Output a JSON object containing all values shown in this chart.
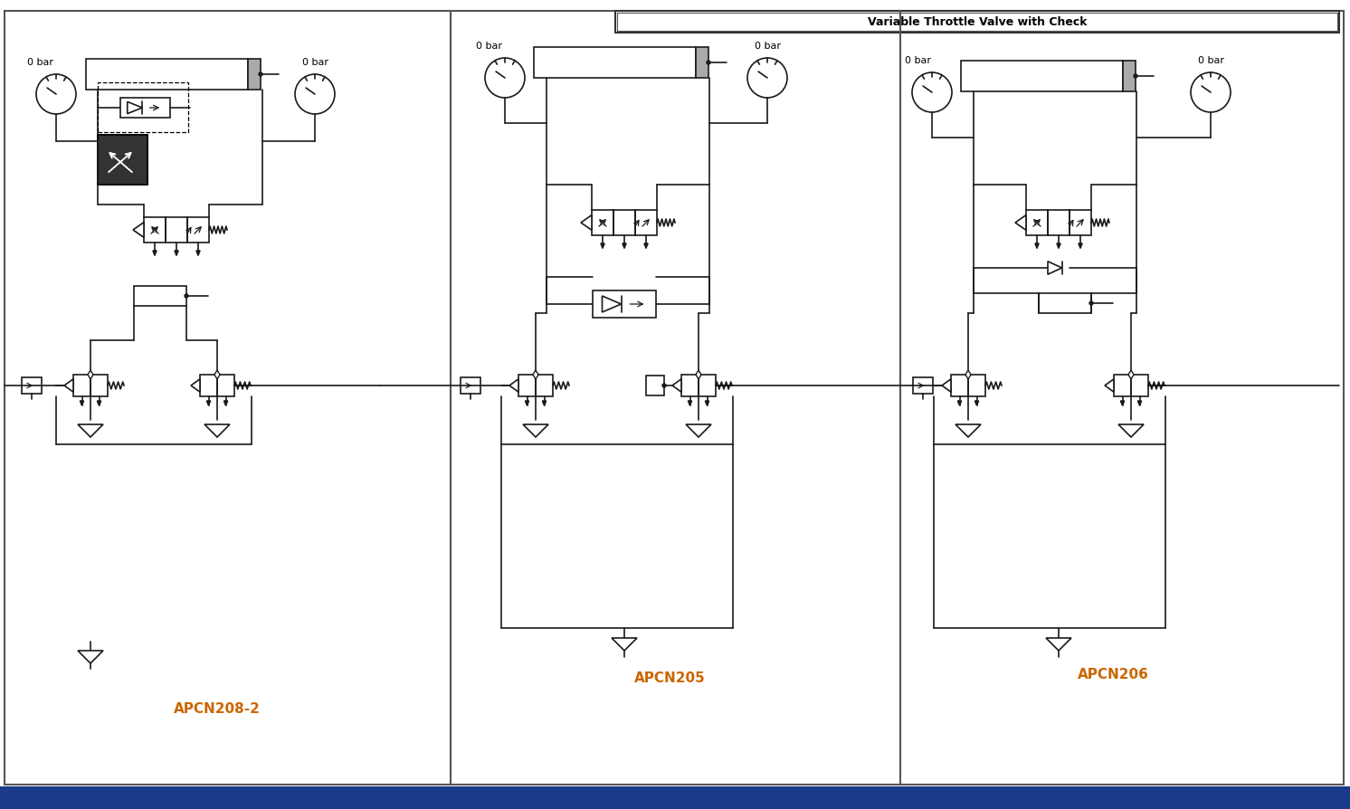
{
  "title": "Variable Throttle Valve with Check",
  "labels": [
    "APCN208-2",
    "APCN205",
    "APCN206"
  ],
  "bg_color": "#ffffff",
  "line_color": "#1a1a1a",
  "text_color_label": "#cc6600",
  "footer_color": "#1a3a8a",
  "border_color": "#444444"
}
